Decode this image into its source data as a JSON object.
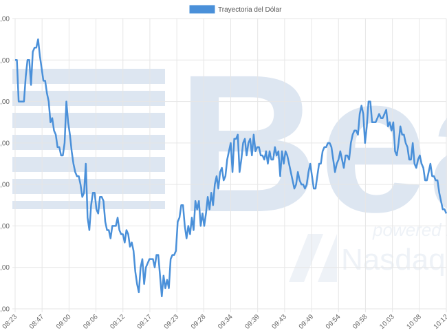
{
  "chart_data": {
    "type": "line",
    "series": [
      {
        "name": "Trayectoria del Dólar",
        "color": "#4a90d9",
        "values": [
          6.0,
          6.0,
          5.0,
          5.0,
          5.0,
          5.0,
          5.6,
          6.0,
          6.0,
          5.4,
          6.2,
          6.3,
          6.3,
          6.5,
          6.1,
          5.8,
          5.5,
          5.5,
          5.2,
          5.0,
          4.5,
          4.6,
          4.3,
          4.2,
          3.9,
          3.9,
          3.7,
          3.7,
          4.0,
          5.0,
          4.5,
          4.2,
          3.8,
          3.5,
          3.3,
          3.2,
          3.2,
          3.0,
          2.7,
          2.8,
          3.5,
          2.2,
          1.9,
          2.5,
          2.8,
          2.8,
          2.4,
          2.3,
          2.7,
          2.7,
          2.6,
          2.1,
          1.9,
          1.9,
          1.7,
          2.0,
          2.0,
          2.0,
          2.2,
          1.9,
          1.8,
          1.8,
          1.6,
          1.9,
          1.8,
          1.5,
          1.6,
          1.4,
          0.9,
          0.6,
          0.4,
          1.0,
          1.2,
          0.6,
          1.0,
          1.1,
          1.2,
          1.2,
          1.2,
          1.0,
          1.3,
          1.3,
          0.8,
          0.3,
          0.8,
          0.5,
          0.7,
          0.5,
          1.2,
          1.3,
          1.3,
          1.4,
          2.1,
          2.2,
          2.5,
          2.5,
          2.0,
          1.7,
          2.0,
          1.8,
          2.2,
          1.9,
          2.6,
          2.4,
          2.6,
          2.0,
          2.3,
          2.0,
          2.3,
          2.7,
          2.4,
          2.8,
          2.5,
          3.0,
          3.2,
          2.9,
          3.3,
          3.4,
          3.1,
          3.2,
          3.6,
          3.8,
          4.0,
          3.3,
          4.1,
          4.1,
          4.2,
          3.3,
          3.6,
          4.0,
          4.1,
          3.7,
          4.0,
          4.1,
          3.7,
          4.2,
          3.8,
          3.9,
          3.9,
          3.7,
          3.7,
          3.6,
          3.8,
          3.5,
          3.8,
          3.6,
          3.6,
          3.9,
          3.7,
          3.8,
          3.2,
          3.8,
          3.5,
          3.8,
          3.7,
          3.5,
          3.3,
          3.1,
          2.9,
          3.0,
          3.3,
          3.1,
          3.0,
          3.0,
          2.9,
          3.0,
          3.3,
          3.5,
          3.2,
          2.9,
          2.9,
          3.2,
          3.5,
          3.5,
          3.8,
          3.9,
          3.9,
          4.0,
          4.0,
          3.9,
          3.6,
          3.3,
          3.5,
          3.6,
          3.8,
          3.6,
          3.4,
          3.7,
          3.7,
          3.6,
          4.0,
          4.2,
          4.3,
          4.3,
          4.2,
          4.7,
          4.9,
          4.7,
          4.0,
          4.4,
          5.0,
          5.0,
          4.5,
          4.5,
          4.5,
          4.6,
          4.7,
          4.6,
          4.6,
          4.7,
          4.8,
          4.4,
          4.5,
          4.3,
          4.5,
          3.8,
          3.7,
          4.0,
          4.4,
          4.2,
          4.2,
          4.0,
          3.9,
          3.6,
          3.6,
          4.0,
          3.5,
          3.4,
          3.6,
          3.7,
          3.5,
          3.4,
          3.1,
          3.1,
          3.3,
          3.5,
          3.2,
          3.2,
          3.1,
          3.1,
          2.8,
          2.6,
          2.4,
          2.4,
          2.3
        ]
      }
    ],
    "x_tick_labels": [
      "08:23",
      "08:47",
      "09:00",
      "09:06",
      "09:12",
      "09:17",
      "09:23",
      "09:28",
      "09:34",
      "09:39",
      "09:43",
      "09:49",
      "09:54",
      "09:58",
      "10:03",
      "10:08",
      "10:12"
    ],
    "y_tick_labels": [
      ",00",
      ",00",
      ",00",
      ",00",
      ",00",
      ",00",
      ",00",
      ",00"
    ],
    "ylim": [
      0,
      7
    ],
    "grid": true,
    "legend_position": "top"
  },
  "watermark": {
    "text": "Bea",
    "sub1": "powered by",
    "sub2": "Nasdaq"
  }
}
